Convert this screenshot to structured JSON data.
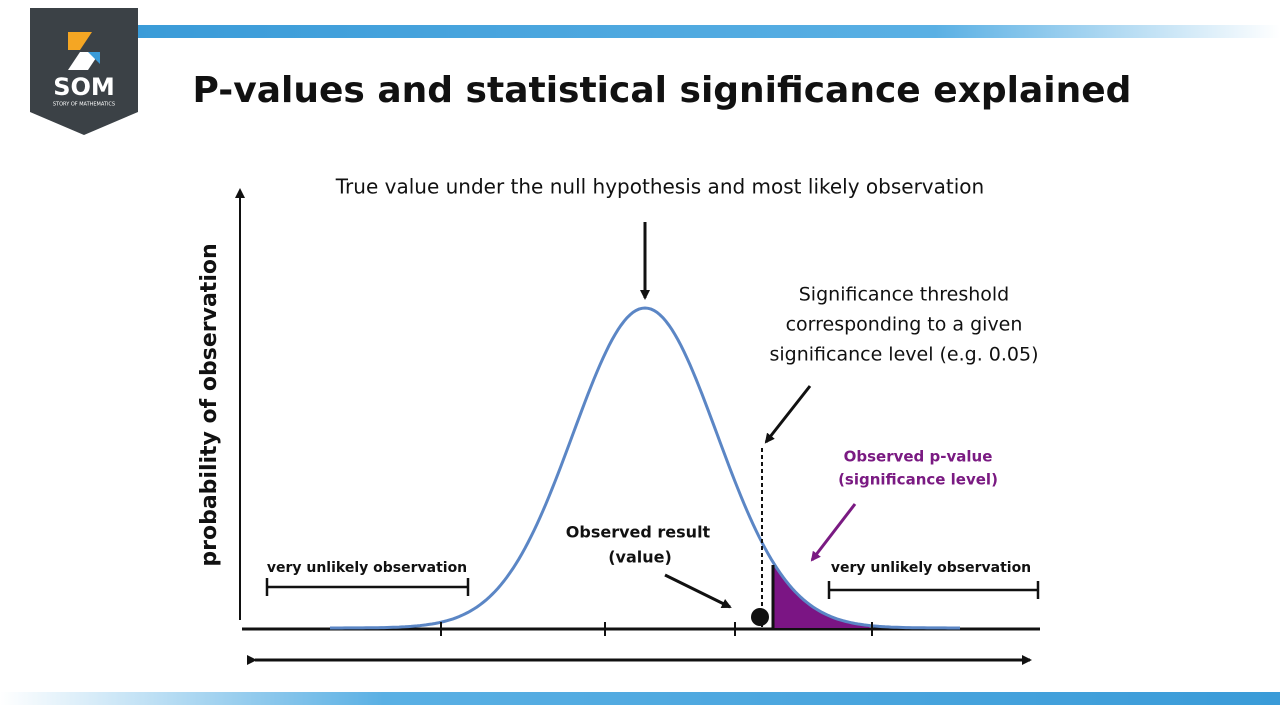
{
  "logo": {
    "name": "SOM",
    "tagline": "STORY OF MATHEMATICS"
  },
  "header": {
    "title": "P-values and statistical significance explained"
  },
  "diagram": {
    "y_axis_label": "probability of observation",
    "peak_label": "True value under the null hypothesis and most likely observation",
    "threshold_label": [
      "Significance threshold",
      "corresponding to a given",
      "significance level (e.g. 0.05)"
    ],
    "p_value_label": [
      "Observed p-value",
      "(significance level)"
    ],
    "observed_label": [
      "Observed result",
      "(value)"
    ],
    "left_tail_label": "very unlikely observation",
    "right_tail_label": "very unlikely observation"
  }
}
